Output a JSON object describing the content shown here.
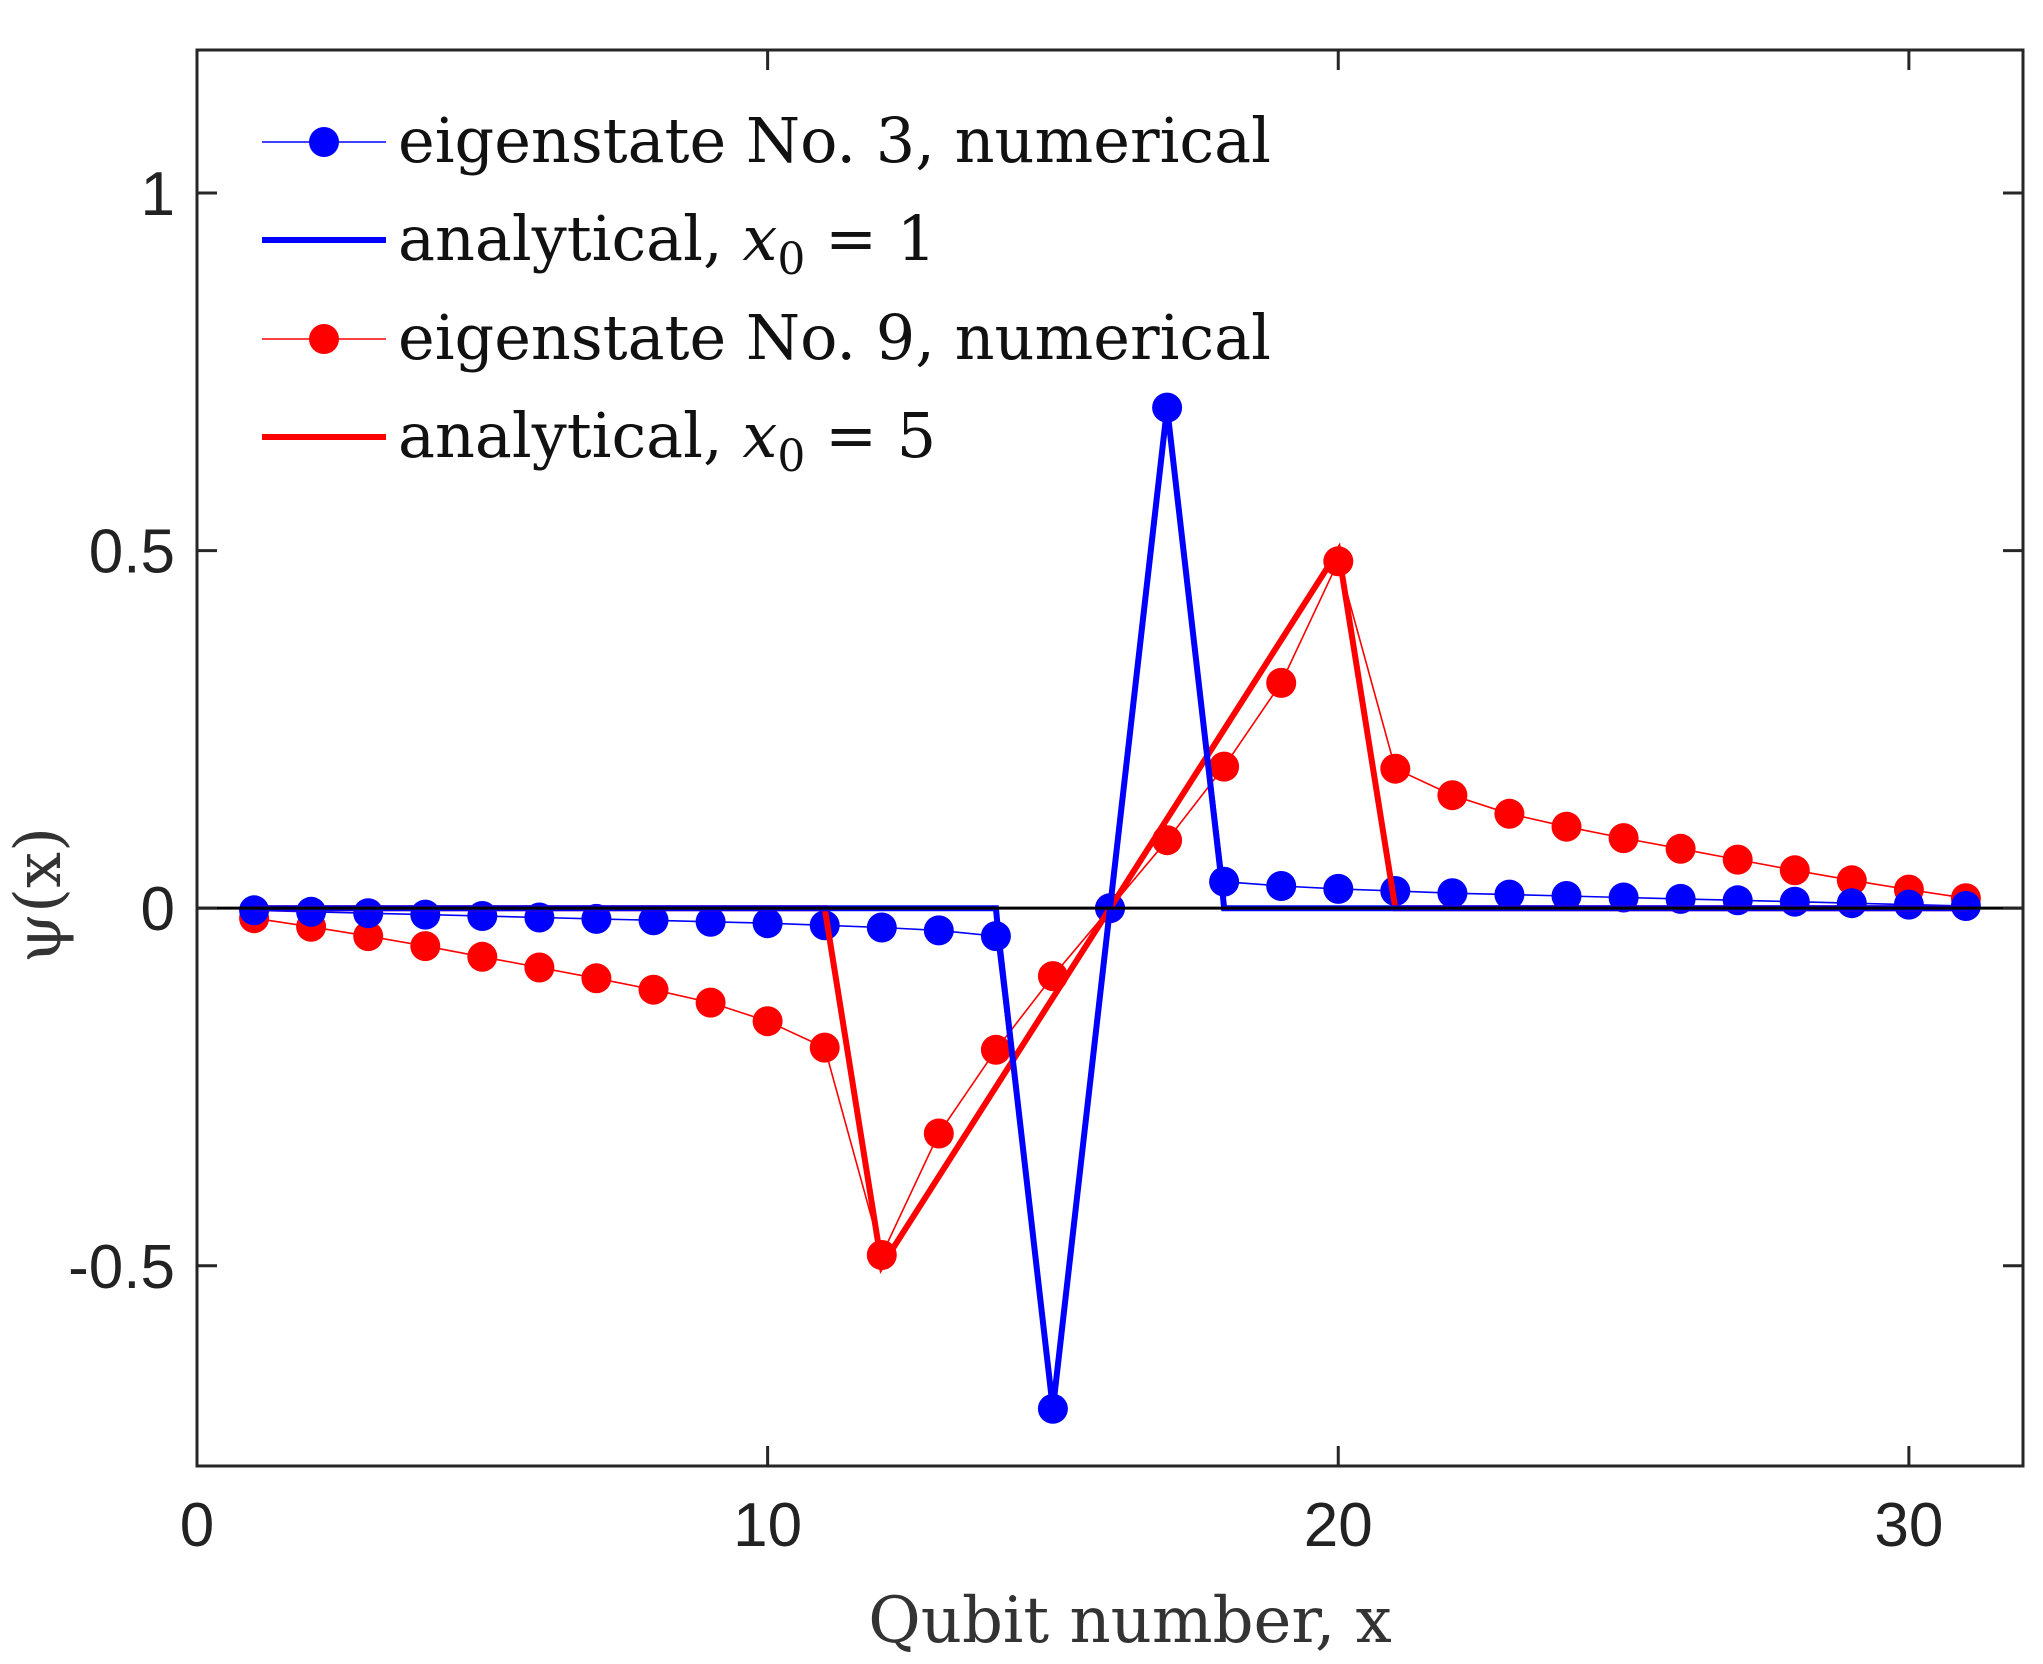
{
  "chart_data": {
    "type": "line",
    "title": "",
    "xlabel": "Qubit number, x",
    "ylabel": "ψ(x)",
    "xlim": [
      0,
      32
    ],
    "ylim": [
      -0.78,
      1.2
    ],
    "xticks": [
      0,
      10,
      20,
      30
    ],
    "xtick_labels": [
      "0",
      "10",
      "20",
      "30"
    ],
    "yticks": [
      -0.5,
      0,
      0.5,
      1
    ],
    "ytick_labels": [
      "-0.5",
      "0",
      "0.5",
      "1"
    ],
    "grid": false,
    "legend_position": "top-left",
    "zero_line": 0,
    "series": [
      {
        "name": "eigenstate No. 3, numerical",
        "legend_label": "eigenstate No. 3, numerical",
        "color": "#0000ff",
        "style": "markers-thin-line",
        "x": [
          1,
          2,
          3,
          4,
          5,
          6,
          7,
          8,
          9,
          10,
          11,
          12,
          13,
          14,
          15,
          16,
          17,
          18,
          19,
          20,
          21,
          22,
          23,
          24,
          25,
          26,
          27,
          28,
          29,
          30,
          31
        ],
        "y": [
          -0.003,
          -0.005,
          -0.007,
          -0.009,
          -0.011,
          -0.013,
          -0.015,
          -0.017,
          -0.019,
          -0.021,
          -0.024,
          -0.027,
          -0.031,
          -0.039,
          -0.7,
          0.0,
          0.7,
          0.037,
          0.031,
          0.027,
          0.024,
          0.021,
          0.019,
          0.017,
          0.015,
          0.013,
          0.011,
          0.009,
          0.007,
          0.005,
          0.003
        ]
      },
      {
        "name": "analytical, x0 = 1",
        "legend_label": "analytical, ",
        "legend_math": "x",
        "legend_sub": "0",
        "legend_rest": " = 1",
        "color": "#0000ff",
        "style": "thick-line",
        "x": [
          1,
          14,
          14.05,
          15,
          16,
          17,
          17.95,
          18,
          31
        ],
        "y": [
          0,
          0,
          -0.04,
          -0.7,
          0,
          0.7,
          0.04,
          0,
          0
        ]
      },
      {
        "name": "eigenstate No. 9, numerical",
        "legend_label": "eigenstate No. 9, numerical",
        "color": "#ff0000",
        "style": "markers-thin-line",
        "x": [
          1,
          2,
          3,
          4,
          5,
          6,
          7,
          8,
          9,
          10,
          11,
          12,
          13,
          14,
          15,
          16,
          17,
          18,
          19,
          20,
          21,
          22,
          23,
          24,
          25,
          26,
          27,
          28,
          29,
          30,
          31
        ],
        "y": [
          -0.014,
          -0.026,
          -0.039,
          -0.053,
          -0.068,
          -0.083,
          -0.098,
          -0.114,
          -0.132,
          -0.158,
          -0.195,
          -0.485,
          -0.315,
          -0.198,
          -0.095,
          0.0,
          0.095,
          0.198,
          0.315,
          0.485,
          0.195,
          0.158,
          0.132,
          0.114,
          0.098,
          0.083,
          0.068,
          0.053,
          0.039,
          0.026,
          0.014
        ]
      },
      {
        "name": "analytical, x0 = 5",
        "legend_label": "analytical, ",
        "legend_math": "x",
        "legend_sub": "0",
        "legend_rest": " = 5",
        "color": "#ff0000",
        "style": "thick-line",
        "x": [
          1,
          11,
          12,
          20,
          21,
          31
        ],
        "y": [
          0,
          0,
          -0.5,
          0.5,
          0,
          0
        ]
      }
    ]
  }
}
